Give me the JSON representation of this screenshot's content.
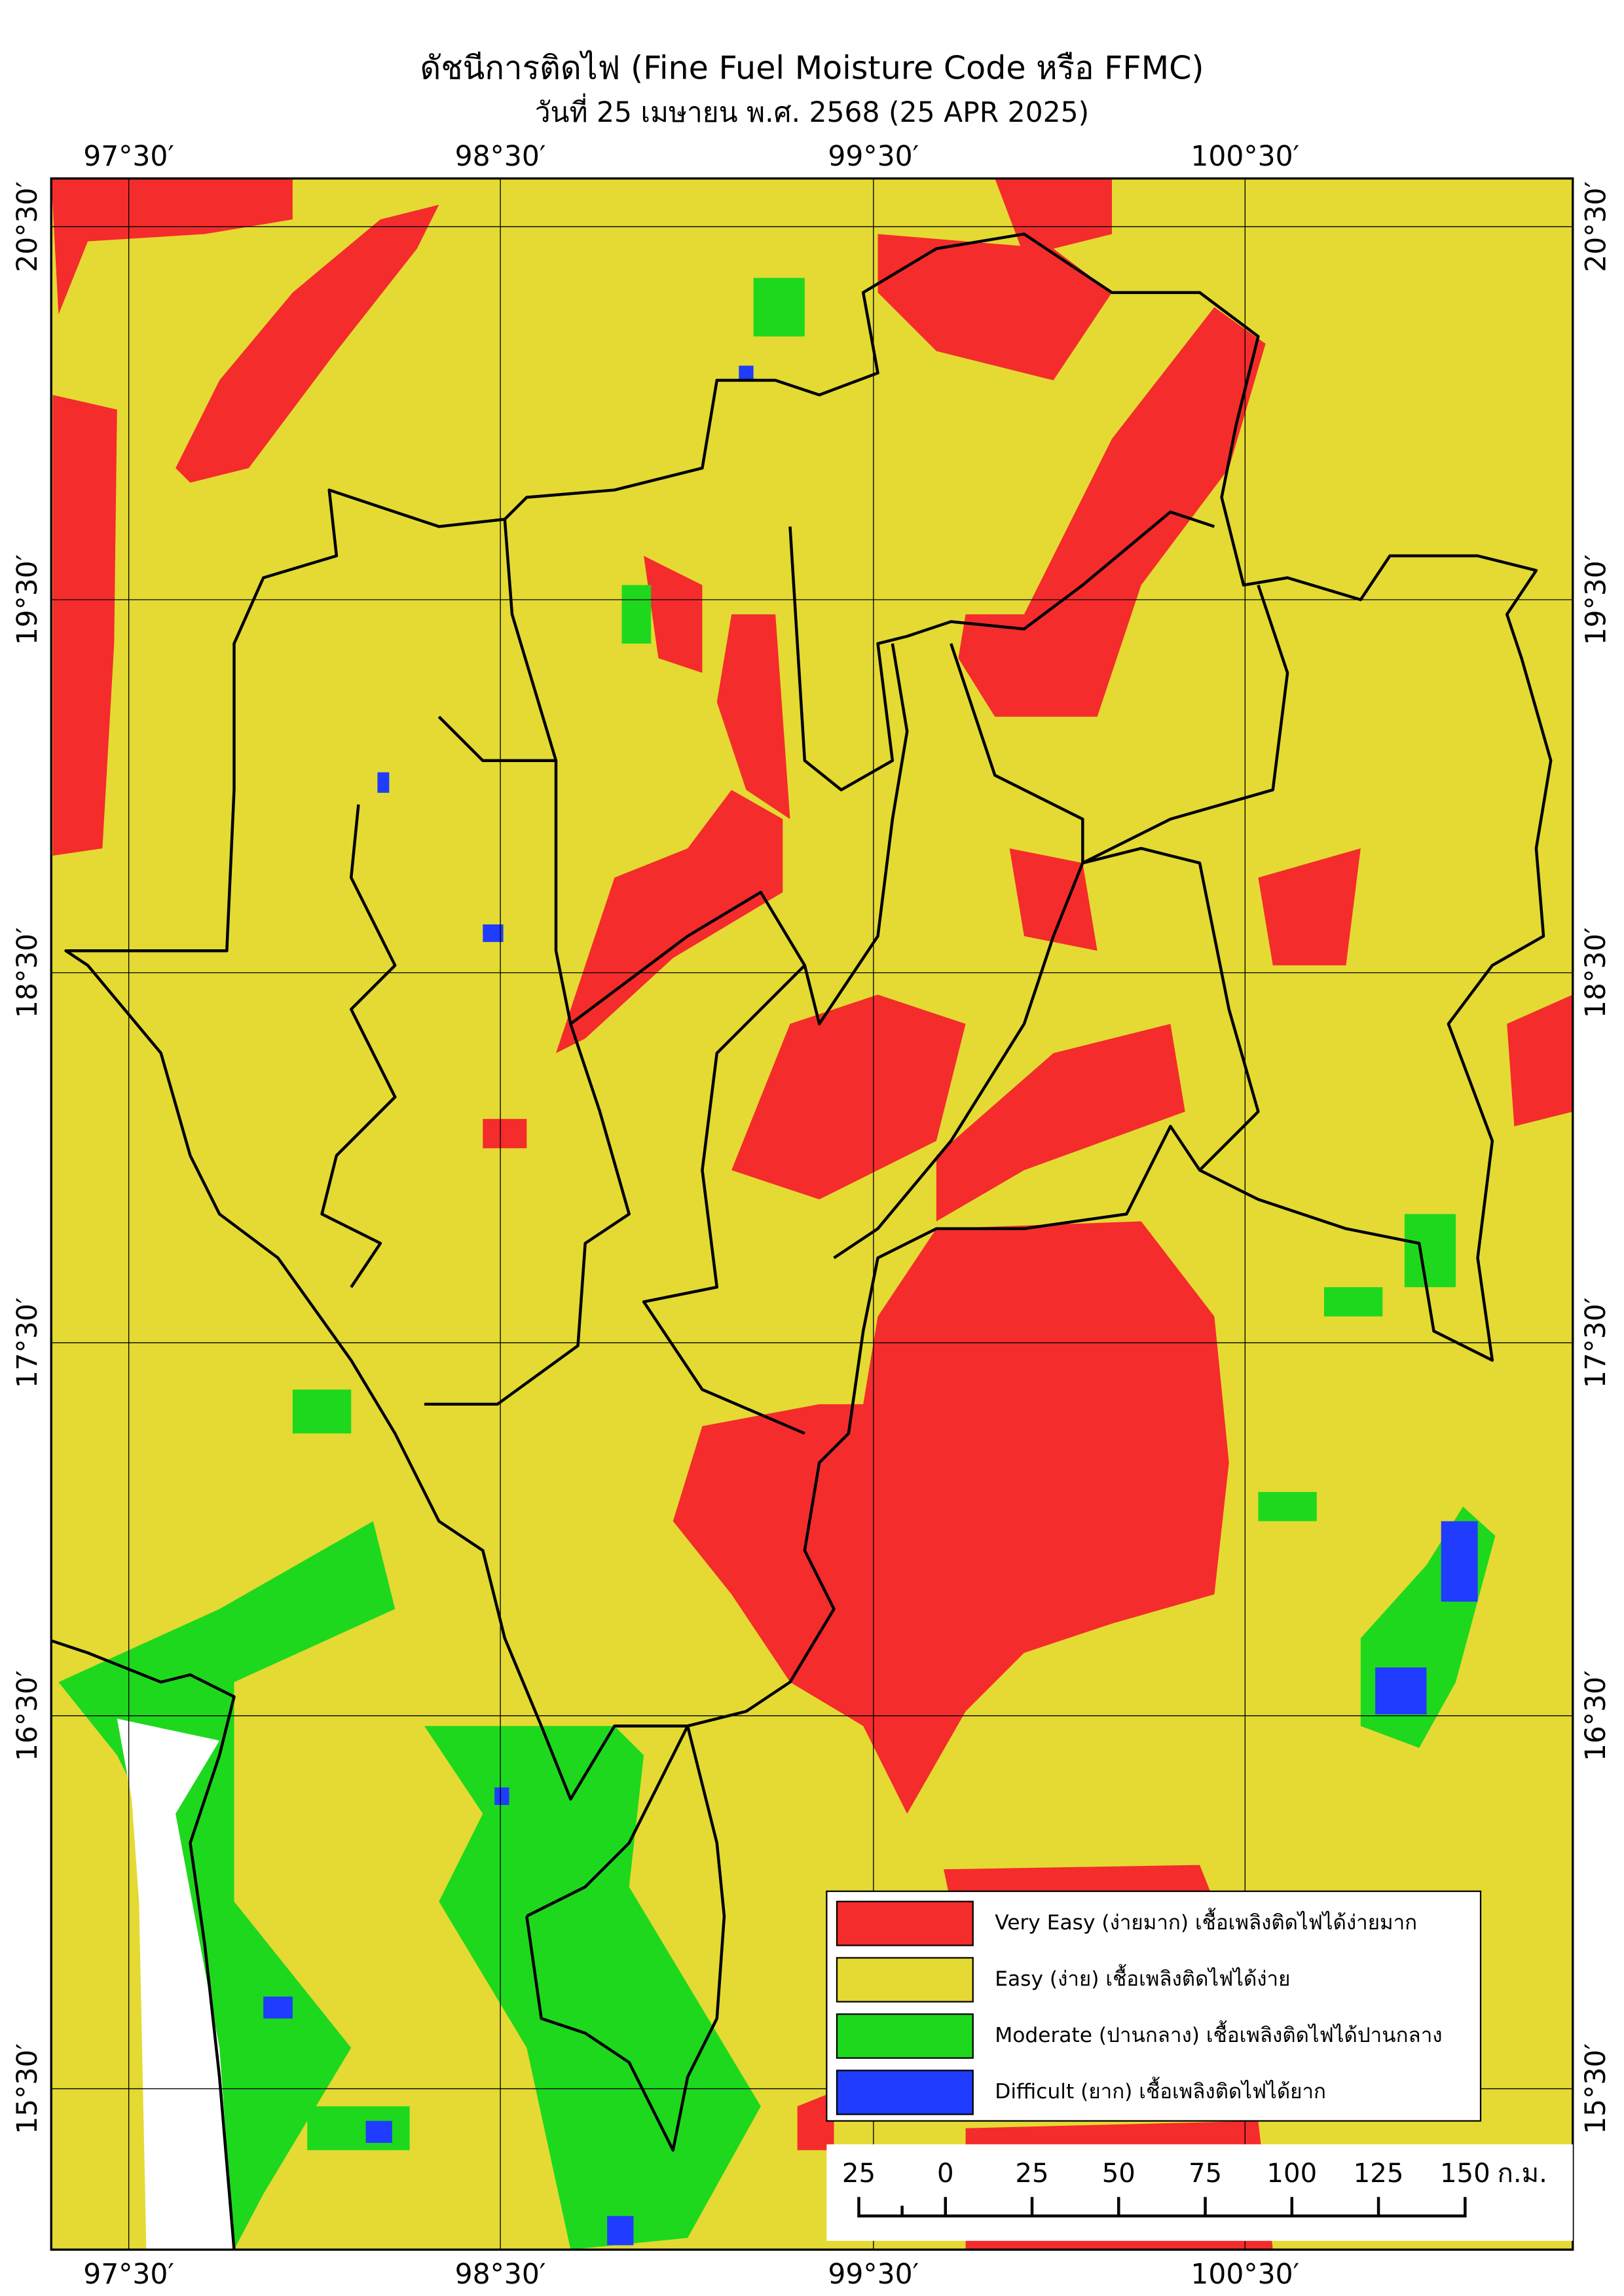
{
  "title": "ดัชนีการติดไฟ (Fine Fuel Moisture Code หรือ FFMC)",
  "subtitle": "วันที่ 25 เมษายน พ.ศ. 2568 (25 APR 2025)",
  "longitude_labels": [
    "97°30′",
    "98°30′",
    "99°30′",
    "100°30′"
  ],
  "latitude_labels": [
    "20°30′",
    "19°30′",
    "18°30′",
    "17°30′",
    "16°30′",
    "15°30′"
  ],
  "legend": [
    {
      "label": "Very Easy (ง่ายมาก) เชื้อเพลิงติดไฟได้ง่ายมาก",
      "color": "#f42c2c"
    },
    {
      "label": "Easy (ง่าย) เชื้อเพลิงติดไฟได้ง่าย",
      "color": "#e4da33"
    },
    {
      "label": "Moderate (ปานกลาง) เชื้อเพลิงติดไฟได้ปานกลาง",
      "color": "#1ed81e"
    },
    {
      "label": "Difficult (ยาก) เชื้อเพลิงติดไฟได้ยาก",
      "color": "#1f3cff"
    }
  ],
  "scale_bar": {
    "labels": [
      "25",
      "0",
      "25",
      "50",
      "75",
      "100",
      "125",
      "150"
    ],
    "unit": "ก.ม."
  }
}
